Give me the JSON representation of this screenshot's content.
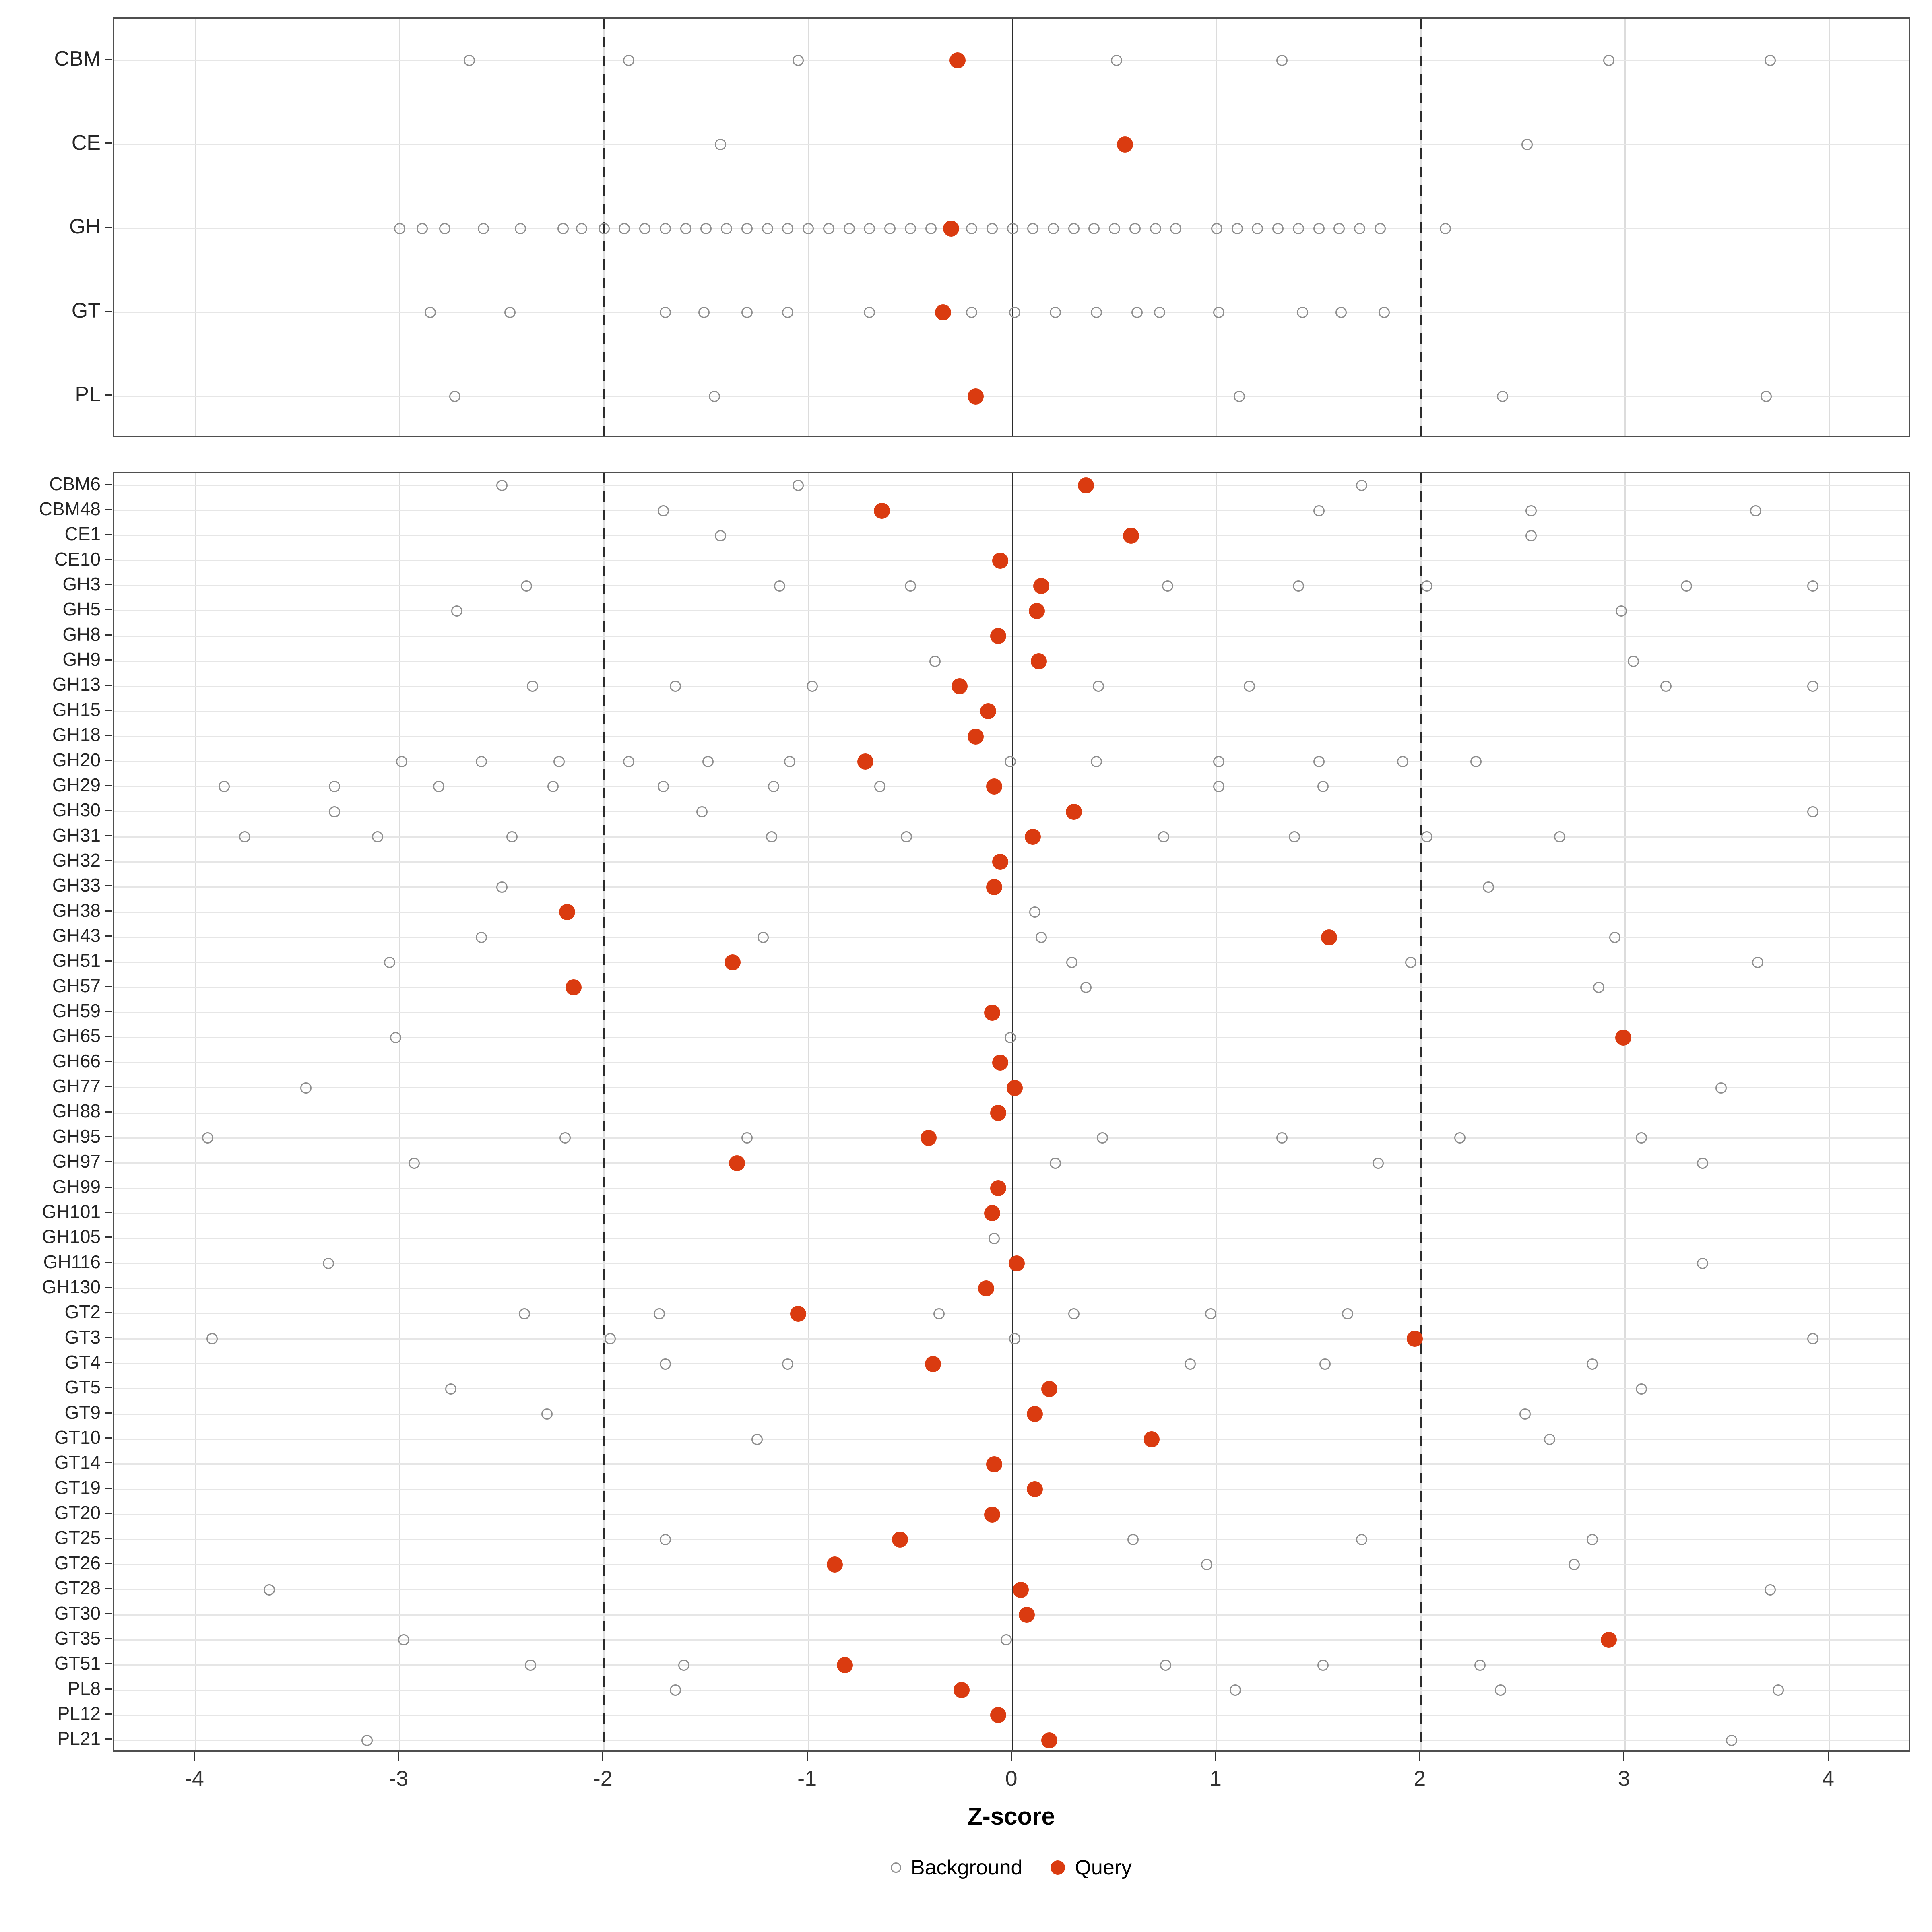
{
  "axis": {
    "title": "Z-score",
    "ticks": [
      -4,
      -3,
      -2,
      -1,
      0,
      1,
      2,
      3,
      4
    ],
    "xmin": -4.4,
    "xmax": 4.4,
    "ref_dashed": [
      -2,
      2
    ],
    "ref_solid": 0
  },
  "legend": {
    "background_label": "Background",
    "query_label": "Query"
  },
  "colors": {
    "query": "#da3b10",
    "background_stroke": "#8e8e8e",
    "grid": "#dcdcdc",
    "row_grid": "#e6e6e6",
    "panel_border": "#4f4f4f",
    "ref_line": "#2b2b2b"
  },
  "chart_data": [
    {
      "type": "scatter",
      "panel": "cazyme-classes",
      "categories": [
        "CBM",
        "CE",
        "GH",
        "GT",
        "PL"
      ],
      "background": [
        [
          -2.66,
          -1.88,
          -1.05,
          0.51,
          1.32,
          2.92,
          3.71
        ],
        [
          -1.43,
          2.52
        ],
        [
          -3.0,
          -2.89,
          -2.78,
          -2.59,
          -2.41,
          -2.2,
          -2.11,
          -2.0,
          -1.9,
          -1.8,
          -1.7,
          -1.6,
          -1.5,
          -1.4,
          -1.3,
          -1.2,
          -1.1,
          -1.0,
          -0.9,
          -0.8,
          -0.7,
          -0.6,
          -0.5,
          -0.4,
          -0.2,
          -0.1,
          0.0,
          0.1,
          0.2,
          0.3,
          0.4,
          0.5,
          0.6,
          0.7,
          0.8,
          1.0,
          1.1,
          1.2,
          1.3,
          1.4,
          1.5,
          1.6,
          1.7,
          1.8,
          2.12
        ],
        [
          -2.85,
          -2.46,
          -1.7,
          -1.51,
          -1.3,
          -1.1,
          -0.7,
          -0.2,
          0.01,
          0.21,
          0.41,
          0.61,
          0.72,
          1.01,
          1.42,
          1.61,
          1.82
        ],
        [
          -2.73,
          -1.46,
          1.11,
          2.4,
          3.69
        ]
      ],
      "query": [
        -0.27,
        0.55,
        -0.3,
        -0.34,
        -0.18
      ]
    },
    {
      "type": "scatter",
      "panel": "cazyme-families",
      "categories": [
        "CBM6",
        "CBM48",
        "CE1",
        "CE10",
        "GH3",
        "GH5",
        "GH8",
        "GH9",
        "GH13",
        "GH15",
        "GH18",
        "GH20",
        "GH29",
        "GH30",
        "GH31",
        "GH32",
        "GH33",
        "GH38",
        "GH43",
        "GH51",
        "GH57",
        "GH59",
        "GH65",
        "GH66",
        "GH77",
        "GH88",
        "GH95",
        "GH97",
        "GH99",
        "GH101",
        "GH105",
        "GH116",
        "GH130",
        "GT2",
        "GT3",
        "GT4",
        "GT5",
        "GT9",
        "GT10",
        "GT14",
        "GT19",
        "GT20",
        "GT25",
        "GT26",
        "GT28",
        "GT30",
        "GT35",
        "GT51",
        "PL8",
        "PL12",
        "PL21"
      ],
      "background": [
        [
          -2.5,
          -1.05,
          1.71
        ],
        [
          -1.71,
          1.5,
          2.54,
          3.64
        ],
        [
          -1.43,
          2.54
        ],
        [],
        [
          -2.38,
          -1.14,
          -0.5,
          0.76,
          1.4,
          2.03,
          3.3,
          3.92
        ],
        [
          -2.72,
          2.98
        ],
        [],
        [
          -0.38,
          3.04
        ],
        [
          -2.35,
          -1.65,
          -0.98,
          0.42,
          1.16,
          3.2,
          3.92
        ],
        [],
        [],
        [
          -2.99,
          -2.6,
          -2.22,
          -1.88,
          -1.49,
          -1.09,
          -0.01,
          0.41,
          1.01,
          1.5,
          1.91,
          2.27
        ],
        [
          -3.86,
          -3.32,
          -2.81,
          -2.25,
          -1.71,
          -1.17,
          -0.65,
          1.01,
          1.52
        ],
        [
          -3.32,
          -1.52,
          3.92
        ],
        [
          -3.76,
          -3.11,
          -2.45,
          -1.18,
          -0.52,
          0.74,
          1.38,
          2.03,
          2.68
        ],
        [],
        [
          -2.5,
          2.33
        ],
        [
          0.11
        ],
        [
          -2.6,
          -1.22,
          0.14,
          2.95
        ],
        [
          -3.05,
          0.29,
          1.95,
          3.65
        ],
        [
          0.36,
          2.87
        ],
        [],
        [
          -3.02,
          -0.01
        ],
        [],
        [
          -3.46,
          3.47
        ],
        [],
        [
          -3.94,
          -2.19,
          -1.3,
          0.44,
          1.32,
          2.19,
          3.08
        ],
        [
          -2.93,
          0.21,
          1.79,
          3.38
        ],
        [],
        [],
        [
          -0.09
        ],
        [
          -3.35,
          3.38
        ],
        [],
        [
          -2.39,
          -1.73,
          -0.36,
          0.3,
          0.97,
          1.64
        ],
        [
          -3.92,
          -1.97,
          0.01,
          3.92
        ],
        [
          -1.7,
          -1.1,
          0.87,
          1.53,
          2.84
        ],
        [
          -2.75,
          3.08
        ],
        [
          -2.28,
          2.51
        ],
        [
          -1.25,
          2.63
        ],
        [],
        [],
        [],
        [
          -1.7,
          0.59,
          1.71,
          2.84
        ],
        [
          0.95,
          2.75
        ],
        [
          -3.64,
          3.71
        ],
        [],
        [
          -2.98,
          -0.03
        ],
        [
          -2.36,
          -1.61,
          0.75,
          1.52,
          2.29
        ],
        [
          -1.65,
          1.09,
          2.39,
          3.75
        ],
        [],
        [
          -3.16,
          3.52
        ]
      ],
      "query": [
        0.36,
        -0.64,
        0.58,
        -0.06,
        0.14,
        0.12,
        -0.07,
        0.13,
        -0.26,
        -0.12,
        -0.18,
        -0.72,
        -0.09,
        0.3,
        0.1,
        -0.06,
        -0.09,
        -2.18,
        1.55,
        -1.37,
        -2.15,
        -0.1,
        2.99,
        -0.06,
        0.01,
        -0.07,
        -0.41,
        -1.35,
        -0.07,
        -0.1,
        null,
        0.02,
        -0.13,
        -1.05,
        1.97,
        -0.39,
        0.18,
        0.11,
        0.68,
        -0.09,
        0.11,
        -0.1,
        -0.55,
        -0.87,
        0.04,
        0.07,
        2.92,
        -0.82,
        -0.25,
        -0.07,
        0.18
      ]
    }
  ]
}
